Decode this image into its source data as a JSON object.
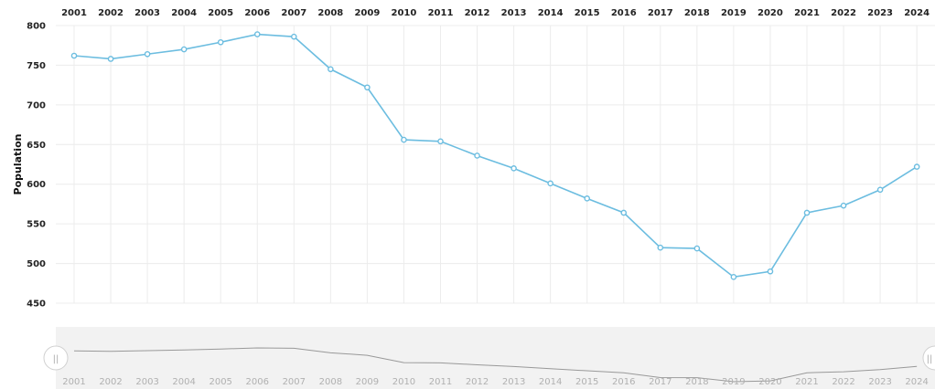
{
  "chart_data": {
    "type": "line",
    "title": "",
    "xlabel": "",
    "ylabel": "Population",
    "ylim": [
      450,
      800
    ],
    "yticks": [
      "450",
      "500",
      "550",
      "600",
      "650",
      "700",
      "750",
      "800"
    ],
    "grid": true,
    "legend": "none",
    "x": [
      "2001",
      "2002",
      "2003",
      "2004",
      "2005",
      "2006",
      "2007",
      "2008",
      "2009",
      "2010",
      "2011",
      "2012",
      "2013",
      "2014",
      "2015",
      "2016",
      "2017",
      "2018",
      "2019",
      "2020",
      "2021",
      "2022",
      "2023",
      "2024"
    ],
    "series": [
      {
        "values": [
          762,
          758,
          764,
          770,
          779,
          789,
          786,
          745,
          722,
          656,
          654,
          636,
          620,
          601,
          582,
          564,
          520,
          519,
          483,
          490,
          564,
          573,
          593,
          622
        ]
      }
    ],
    "line_color": "#6cbde0",
    "navigator": {
      "line_color": "#999999",
      "background": "#f2f2f2",
      "handle_left_glyph": "||",
      "handle_right_glyph": "||"
    }
  }
}
